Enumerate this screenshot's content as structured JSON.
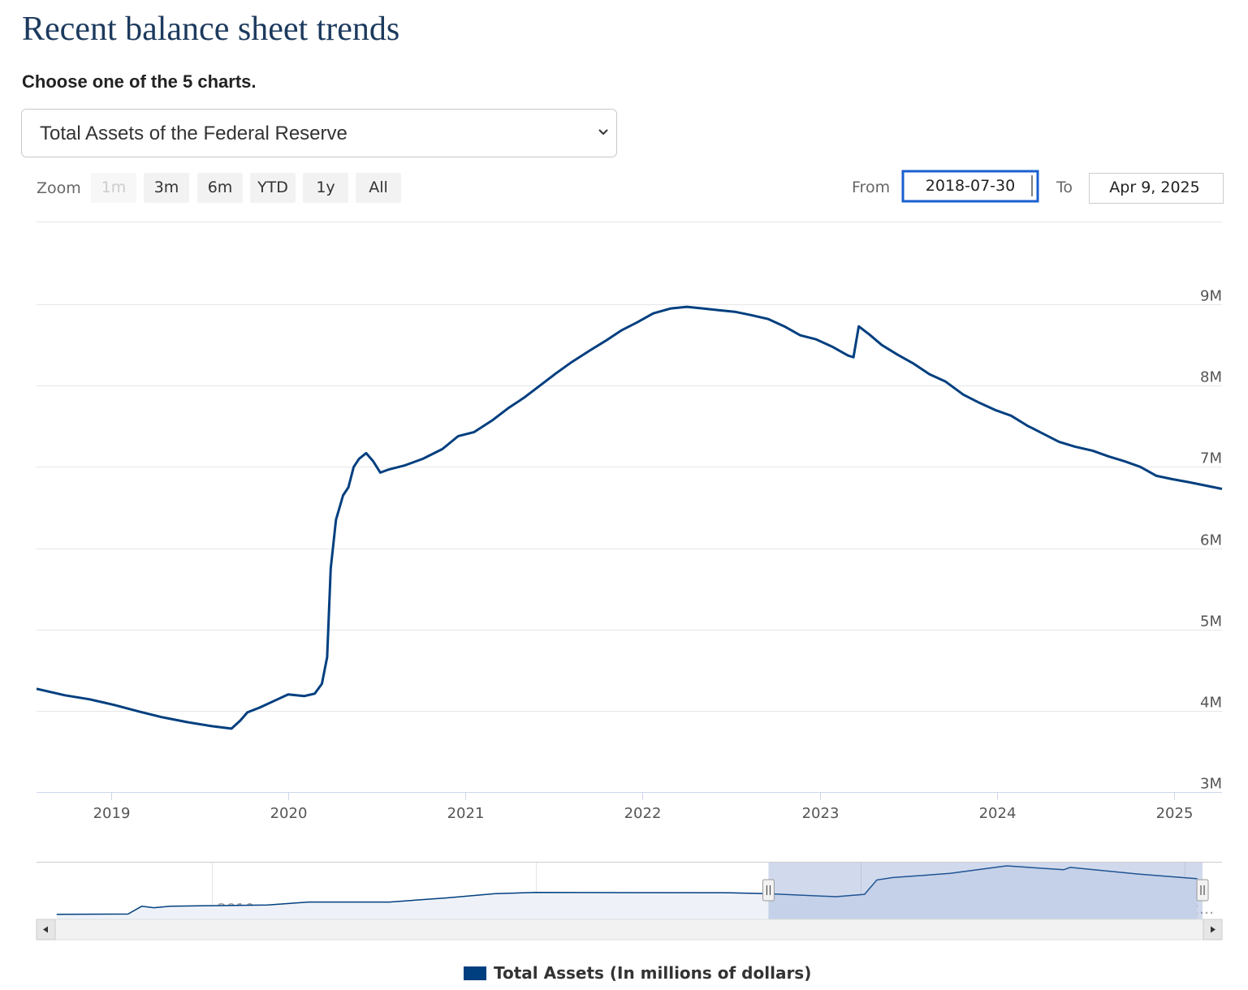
{
  "header": {
    "title": "Recent balance sheet trends",
    "prompt": "Choose one of the 5 charts.",
    "select": "Total Assets of the Federal Reserve"
  },
  "zoom": {
    "label": "Zoom",
    "buttons": [
      "1m",
      "3m",
      "6m",
      "YTD",
      "1y",
      "All"
    ],
    "disabled": [
      "1m"
    ]
  },
  "range": {
    "from_label": "From",
    "from": "2018-07-30",
    "to_label": "To",
    "to": "Apr 9, 2025"
  },
  "chart_data": [
    {
      "type": "line",
      "x": [
        2018.58,
        2018.74,
        2018.88,
        2019.02,
        2019.16,
        2019.29,
        2019.43,
        2019.57,
        2019.68,
        2019.73,
        2019.77,
        2019.84,
        2019.93,
        2020.0,
        2020.09,
        2020.15,
        2020.19,
        2020.22,
        2020.24,
        2020.27,
        2020.31,
        2020.34,
        2020.37,
        2020.4,
        2020.44,
        2020.48,
        2020.52,
        2020.57,
        2020.66,
        2020.76,
        2020.87,
        2020.96,
        2021.05,
        2021.15,
        2021.24,
        2021.33,
        2021.42,
        2021.51,
        2021.6,
        2021.7,
        2021.79,
        2021.88,
        2021.97,
        2022.06,
        2022.16,
        2022.25,
        2022.34,
        2022.43,
        2022.52,
        2022.61,
        2022.71,
        2022.8,
        2022.89,
        2022.98,
        2023.07,
        2023.16,
        2023.19,
        2023.22,
        2023.28,
        2023.35,
        2023.44,
        2023.53,
        2023.62,
        2023.71,
        2023.81,
        2023.9,
        2023.99,
        2024.08,
        2024.17,
        2024.26,
        2024.35,
        2024.44,
        2024.54,
        2024.63,
        2024.72,
        2024.81,
        2024.9,
        2024.99,
        2025.09,
        2025.18,
        2025.27
      ],
      "series": [
        {
          "name": "Total Assets (In millions of dollars)",
          "color": "#003f7f",
          "values": [
            4270000,
            4190000,
            4140000,
            4070000,
            3990000,
            3920000,
            3860000,
            3810000,
            3780000,
            3880000,
            3980000,
            4040000,
            4130000,
            4200000,
            4180000,
            4210000,
            4330000,
            4660000,
            5750000,
            6350000,
            6650000,
            6750000,
            7000000,
            7100000,
            7170000,
            7070000,
            6930000,
            6970000,
            7020000,
            7100000,
            7220000,
            7380000,
            7430000,
            7570000,
            7720000,
            7850000,
            8000000,
            8150000,
            8290000,
            8430000,
            8550000,
            8680000,
            8780000,
            8890000,
            8950000,
            8970000,
            8950000,
            8930000,
            8910000,
            8870000,
            8820000,
            8730000,
            8620000,
            8570000,
            8480000,
            8370000,
            8350000,
            8730000,
            8630000,
            8500000,
            8380000,
            8270000,
            8140000,
            8050000,
            7890000,
            7790000,
            7700000,
            7630000,
            7510000,
            7410000,
            7310000,
            7250000,
            7200000,
            7130000,
            7070000,
            7000000,
            6890000,
            6850000,
            6810000,
            6770000,
            6730000
          ]
        }
      ],
      "xlim": [
        2018.58,
        2025.27
      ],
      "xticks": [
        2019,
        2020,
        2021,
        2022,
        2023,
        2024,
        2025
      ],
      "ylim": [
        3000000,
        10000000
      ],
      "yticks": [
        {
          "value": 3000000,
          "label": "3M"
        },
        {
          "value": 4000000,
          "label": "4M"
        },
        {
          "value": 5000000,
          "label": "5M"
        },
        {
          "value": 6000000,
          "label": "6M"
        },
        {
          "value": 7000000,
          "label": "7M"
        },
        {
          "value": 8000000,
          "label": "8M"
        },
        {
          "value": 9000000,
          "label": "9M"
        }
      ],
      "grid": true,
      "legend": "bottom"
    },
    {
      "type": "area",
      "x": [
        2007.61,
        2008.71,
        2008.92,
        2009.11,
        2009.36,
        2009.99,
        2010.86,
        2011.49,
        2012.74,
        2013.62,
        2014.37,
        2014.99,
        2018.0,
        2018.56,
        2019.62,
        2020.06,
        2020.25,
        2020.5,
        2021.38,
        2022.25,
        2023.13,
        2023.23,
        2024.26,
        2025.19
      ],
      "series": [
        {
          "color": "#003f7f",
          "values": [
            860000,
            900000,
            2200000,
            1950000,
            2200000,
            2300000,
            2400000,
            2900000,
            2900000,
            3600000,
            4300000,
            4500000,
            4450000,
            4300000,
            3800000,
            4200000,
            6600000,
            7000000,
            7700000,
            8960000,
            8300000,
            8700000,
            7600000,
            6800000
          ]
        }
      ],
      "xlim": [
        2007.3,
        2025.57
      ],
      "xticks": [
        2010,
        2015,
        2020,
        {
          "value": 2025,
          "label": "2…"
        }
      ],
      "ylim": [
        0,
        9500000
      ]
    }
  ]
}
